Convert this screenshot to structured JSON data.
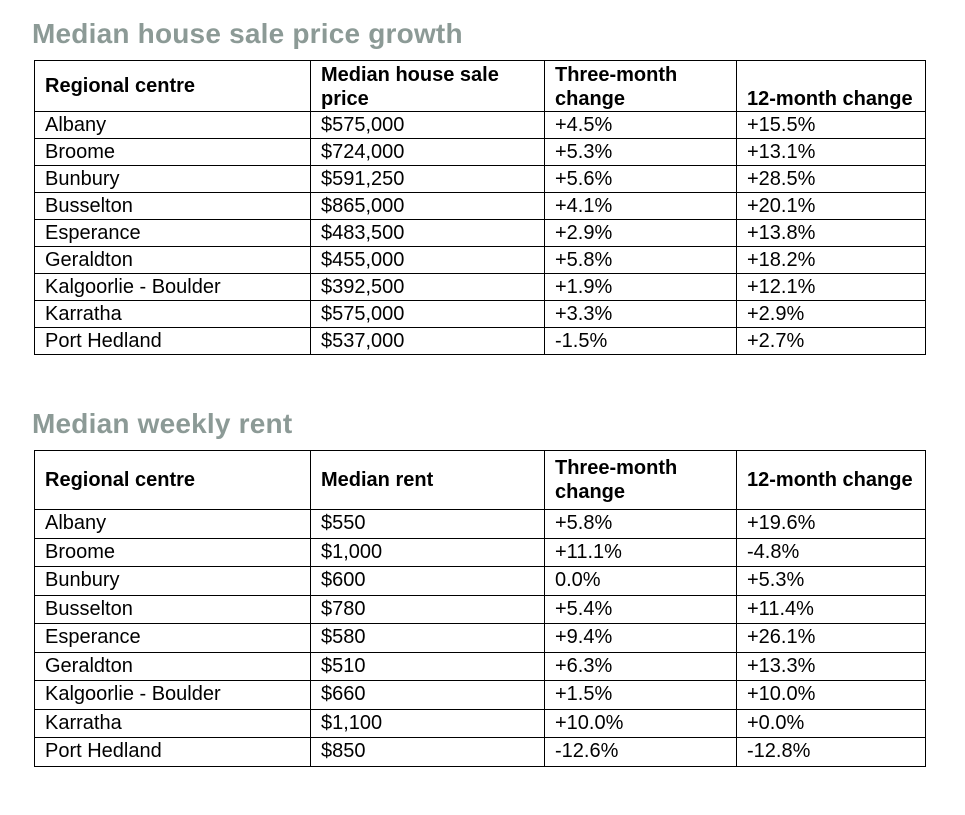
{
  "sales": {
    "title": "Median house sale price growth",
    "headers": [
      "Regional centre",
      "Median house sale price",
      "Three-month change",
      "12-month change"
    ],
    "rows": [
      [
        "Albany",
        "$575,000",
        "+4.5%",
        "+15.5%"
      ],
      [
        "Broome",
        "$724,000",
        "+5.3%",
        "+13.1%"
      ],
      [
        "Bunbury",
        "$591,250",
        "+5.6%",
        "+28.5%"
      ],
      [
        "Busselton",
        "$865,000",
        "+4.1%",
        "+20.1%"
      ],
      [
        "Esperance",
        "$483,500",
        "+2.9%",
        "+13.8%"
      ],
      [
        "Geraldton",
        "$455,000",
        "+5.8%",
        "+18.2%"
      ],
      [
        "Kalgoorlie - Boulder",
        "$392,500",
        "+1.9%",
        "+12.1%"
      ],
      [
        "Karratha",
        "$575,000",
        "+3.3%",
        "+2.9%"
      ],
      [
        "Port Hedland",
        "$537,000",
        "-1.5%",
        "+2.7%"
      ]
    ]
  },
  "rent": {
    "title": "Median weekly rent",
    "headers": [
      "Regional centre",
      "Median rent",
      "Three-month change",
      "12-month change"
    ],
    "rows": [
      [
        "Albany",
        "$550",
        "+5.8%",
        "+19.6%"
      ],
      [
        "Broome",
        "$1,000",
        "+11.1%",
        "-4.8%"
      ],
      [
        "Bunbury",
        "$600",
        "0.0%",
        "+5.3%"
      ],
      [
        "Busselton",
        "$780",
        "+5.4%",
        "+11.4%"
      ],
      [
        "Esperance",
        "$580",
        "+9.4%",
        "+26.1%"
      ],
      [
        "Geraldton",
        "$510",
        "+6.3%",
        "+13.3%"
      ],
      [
        "Kalgoorlie - Boulder",
        "$660",
        "+1.5%",
        "+10.0%"
      ],
      [
        "Karratha",
        "$1,100",
        "+10.0%",
        "+0.0%"
      ],
      [
        "Port Hedland",
        "$850",
        "-12.6%",
        "-12.8%"
      ]
    ]
  },
  "colors": {
    "title": "#8c9a96",
    "border": "#000000",
    "text": "#000000"
  }
}
